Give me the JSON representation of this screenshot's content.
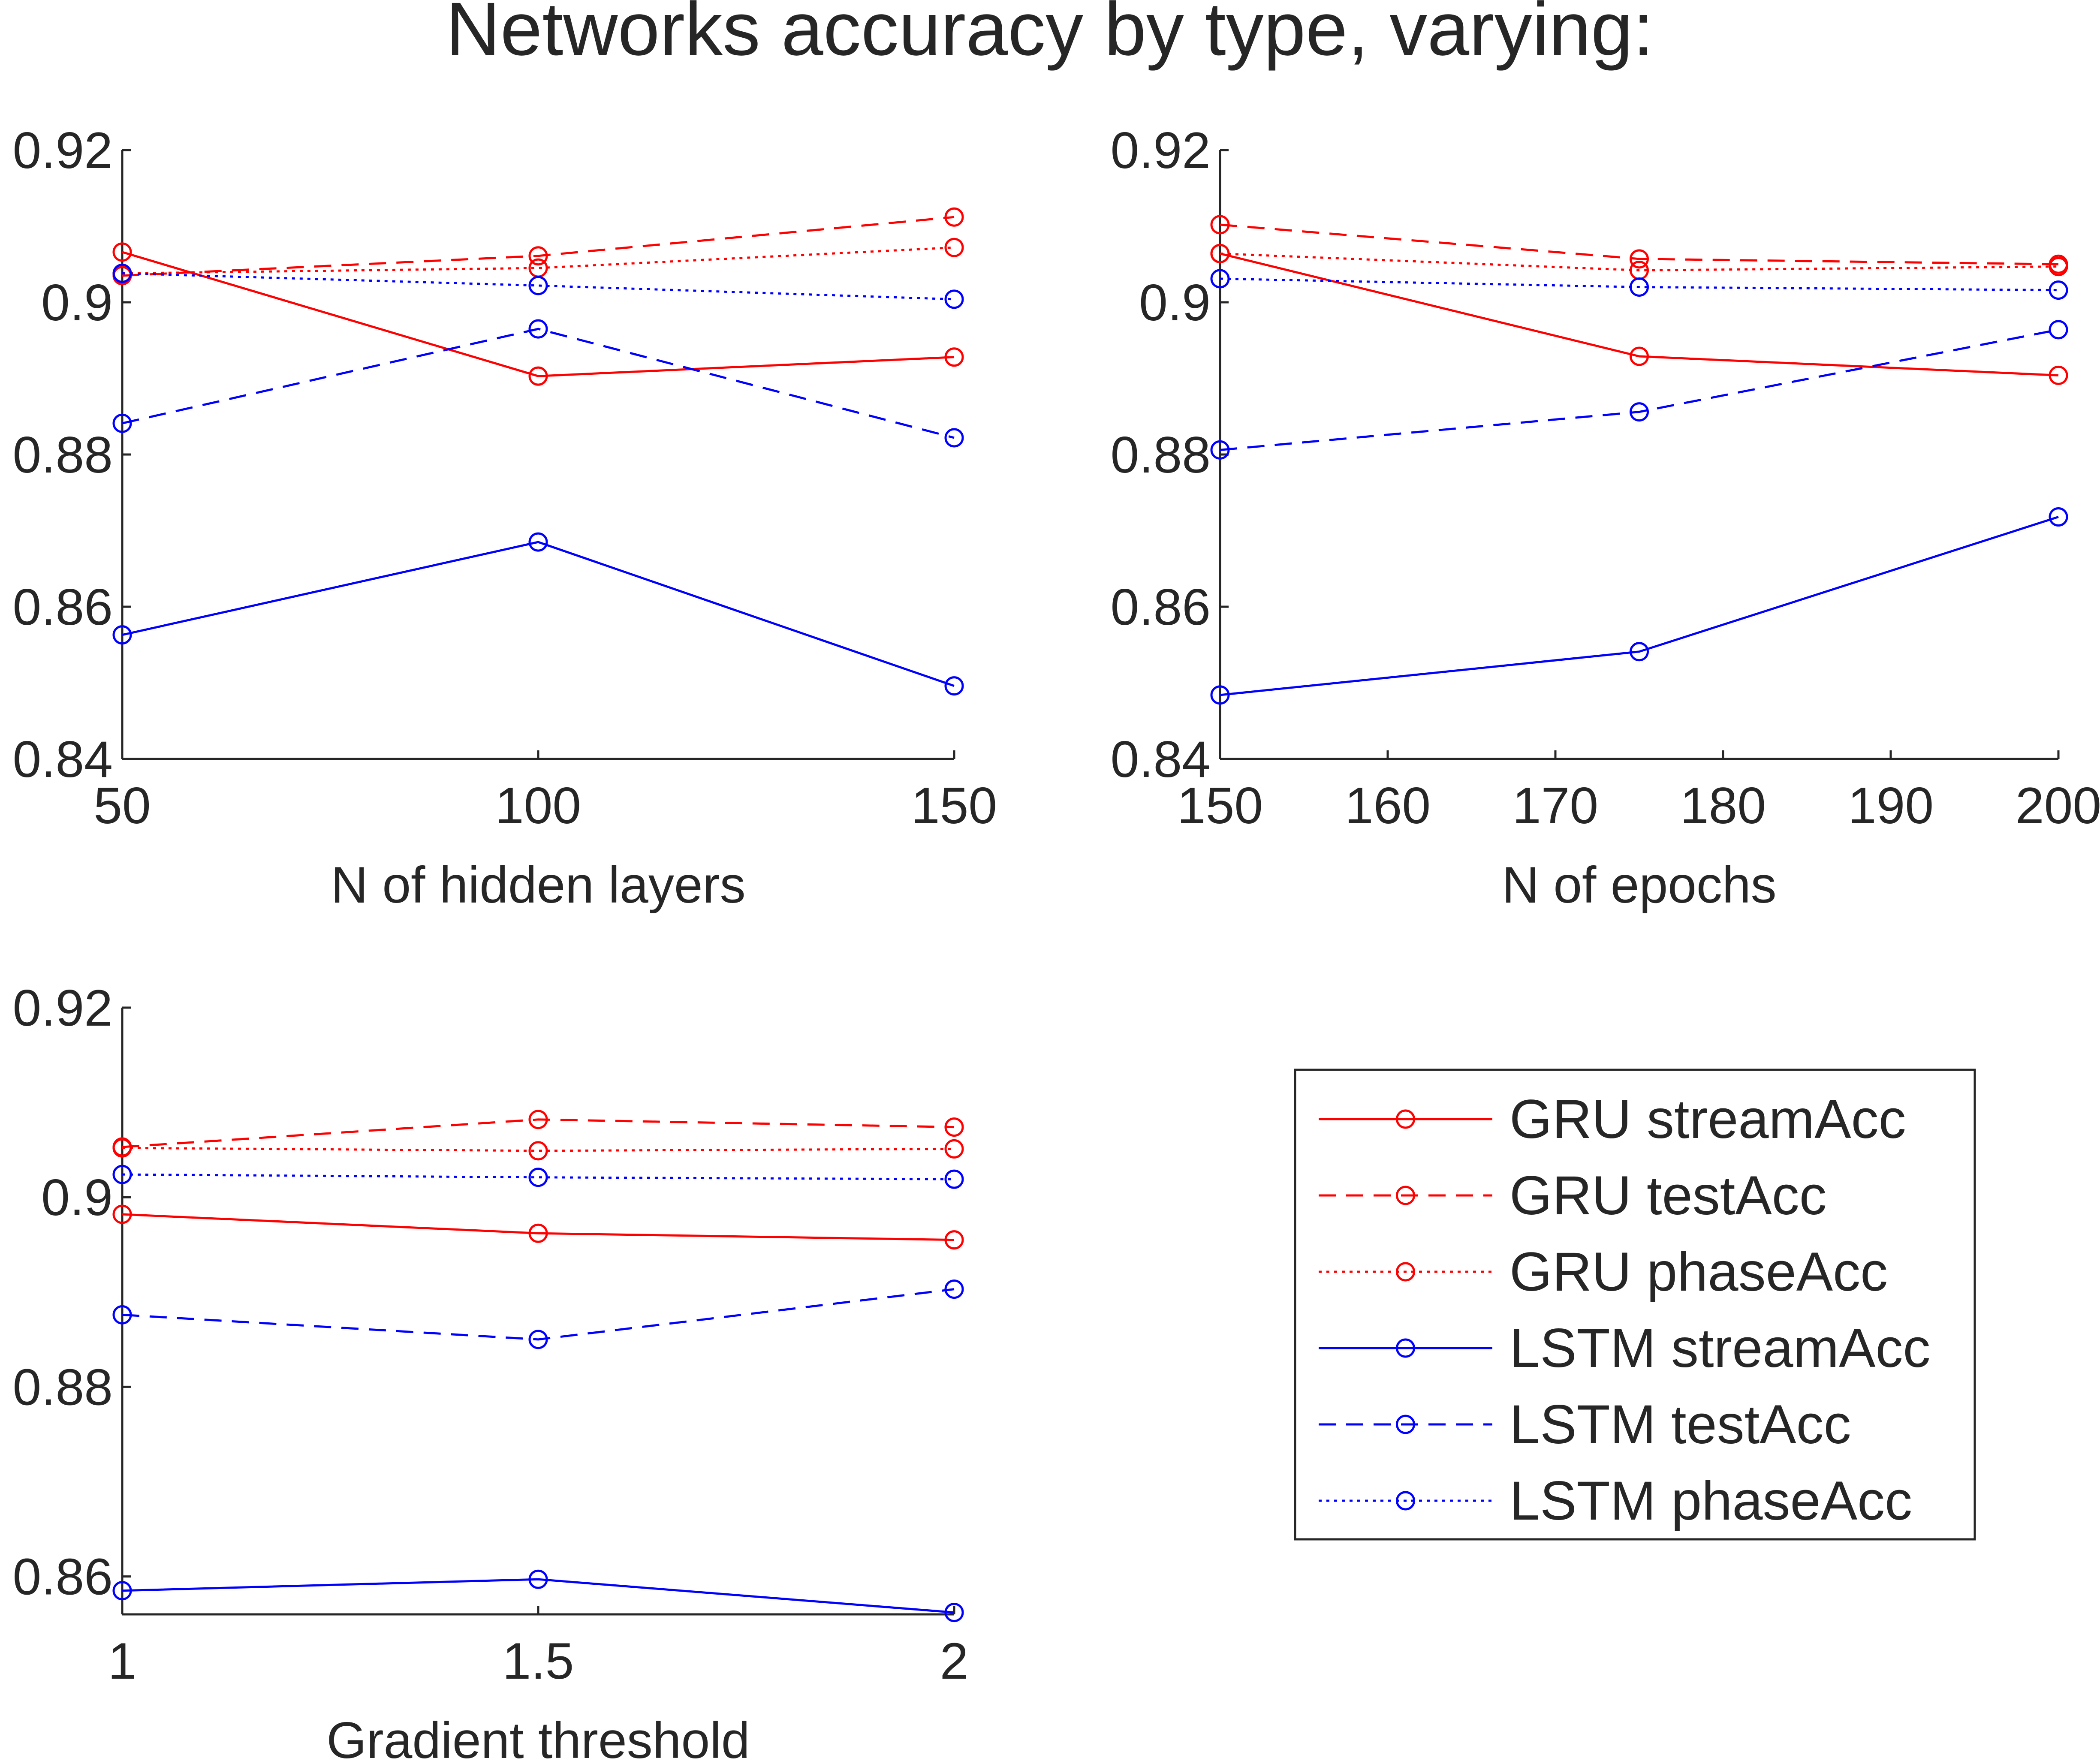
{
  "figure_title": "Networks accuracy by type, varying:",
  "colors": {
    "gru": "#ff0000",
    "lstm": "#0000ff",
    "axis": "#262626",
    "legend_border": "#262626"
  },
  "legend": {
    "placement": "bottom-right",
    "entries": [
      {
        "label": "GRU streamAcc",
        "color": "#ff0000",
        "style": "solid",
        "marker": "circle"
      },
      {
        "label": "GRU testAcc",
        "color": "#ff0000",
        "style": "dashed",
        "marker": "circle"
      },
      {
        "label": "GRU phaseAcc",
        "color": "#ff0000",
        "style": "dotted",
        "marker": "circle"
      },
      {
        "label": "LSTM streamAcc",
        "color": "#0000ff",
        "style": "solid",
        "marker": "circle"
      },
      {
        "label": "LSTM testAcc",
        "color": "#0000ff",
        "style": "dashed",
        "marker": "circle"
      },
      {
        "label": "LSTM phaseAcc",
        "color": "#0000ff",
        "style": "dotted",
        "marker": "circle"
      }
    ]
  },
  "chart_data": [
    {
      "type": "line",
      "xlabel": "N of hidden layers",
      "ylabel": "",
      "xlim": [
        50,
        150
      ],
      "ylim": [
        0.84,
        0.92
      ],
      "xticks": [
        50,
        100,
        150
      ],
      "xtick_labels": [
        "50",
        "100",
        "150"
      ],
      "yticks": [
        0.84,
        0.86,
        0.88,
        0.9,
        0.92
      ],
      "ytick_labels": [
        "0.84",
        "0.86",
        "0.88",
        "0.9",
        "0.92"
      ],
      "grid": false,
      "x": [
        50,
        100,
        150
      ],
      "series": [
        {
          "name": "GRU streamAcc",
          "values": [
            0.9066,
            0.8903,
            0.8928
          ]
        },
        {
          "name": "GRU testAcc",
          "values": [
            0.9035,
            0.9061,
            0.9112
          ]
        },
        {
          "name": "GRU phaseAcc",
          "values": [
            0.9038,
            0.9045,
            0.9072
          ]
        },
        {
          "name": "LSTM streamAcc",
          "values": [
            0.8563,
            0.8685,
            0.8496
          ]
        },
        {
          "name": "LSTM testAcc",
          "values": [
            0.8841,
            0.8965,
            0.8822
          ]
        },
        {
          "name": "LSTM phaseAcc",
          "values": [
            0.9038,
            0.9022,
            0.9004
          ]
        }
      ]
    },
    {
      "type": "line",
      "xlabel": "N of epochs",
      "ylabel": "",
      "xlim": [
        150,
        200
      ],
      "ylim": [
        0.84,
        0.92
      ],
      "xticks": [
        150,
        160,
        170,
        180,
        190,
        200
      ],
      "xtick_labels": [
        "150",
        "160",
        "170",
        "180",
        "190",
        "200"
      ],
      "yticks": [
        0.84,
        0.86,
        0.88,
        0.9,
        0.92
      ],
      "ytick_labels": [
        "0.84",
        "0.86",
        "0.88",
        "0.9",
        "0.92"
      ],
      "grid": false,
      "x": [
        150,
        175,
        200
      ],
      "series": [
        {
          "name": "GRU streamAcc",
          "values": [
            0.9064,
            0.8929,
            0.8904
          ]
        },
        {
          "name": "GRU testAcc",
          "values": [
            0.9102,
            0.9057,
            0.905
          ]
        },
        {
          "name": "GRU phaseAcc",
          "values": [
            0.9064,
            0.9042,
            0.9047
          ]
        },
        {
          "name": "LSTM streamAcc",
          "values": [
            0.8484,
            0.8541,
            0.8718
          ]
        },
        {
          "name": "LSTM testAcc",
          "values": [
            0.8806,
            0.8856,
            0.8964
          ]
        },
        {
          "name": "LSTM phaseAcc",
          "values": [
            0.9031,
            0.902,
            0.9016
          ]
        }
      ]
    },
    {
      "type": "line",
      "xlabel": "Gradient threshold",
      "ylabel": "",
      "xlim": [
        1,
        2
      ],
      "ylim": [
        0.856,
        0.92
      ],
      "xticks": [
        1,
        1.5,
        2
      ],
      "xtick_labels": [
        "1",
        "1.5",
        "2"
      ],
      "yticks": [
        0.86,
        0.88,
        0.9,
        0.92
      ],
      "ytick_labels": [
        "0.86",
        "0.88",
        "0.9",
        "0.92"
      ],
      "grid": false,
      "x": [
        1,
        1.5,
        2
      ],
      "series": [
        {
          "name": "GRU streamAcc",
          "values": [
            0.8982,
            0.8962,
            0.8955
          ]
        },
        {
          "name": "GRU testAcc",
          "values": [
            0.9053,
            0.9082,
            0.9074
          ]
        },
        {
          "name": "GRU phaseAcc",
          "values": [
            0.9052,
            0.9049,
            0.9051
          ]
        },
        {
          "name": "LSTM streamAcc",
          "values": [
            0.8585,
            0.8597,
            0.8562
          ]
        },
        {
          "name": "LSTM testAcc",
          "values": [
            0.8876,
            0.885,
            0.8903
          ]
        },
        {
          "name": "LSTM phaseAcc",
          "values": [
            0.9024,
            0.9021,
            0.9019
          ]
        }
      ]
    }
  ]
}
